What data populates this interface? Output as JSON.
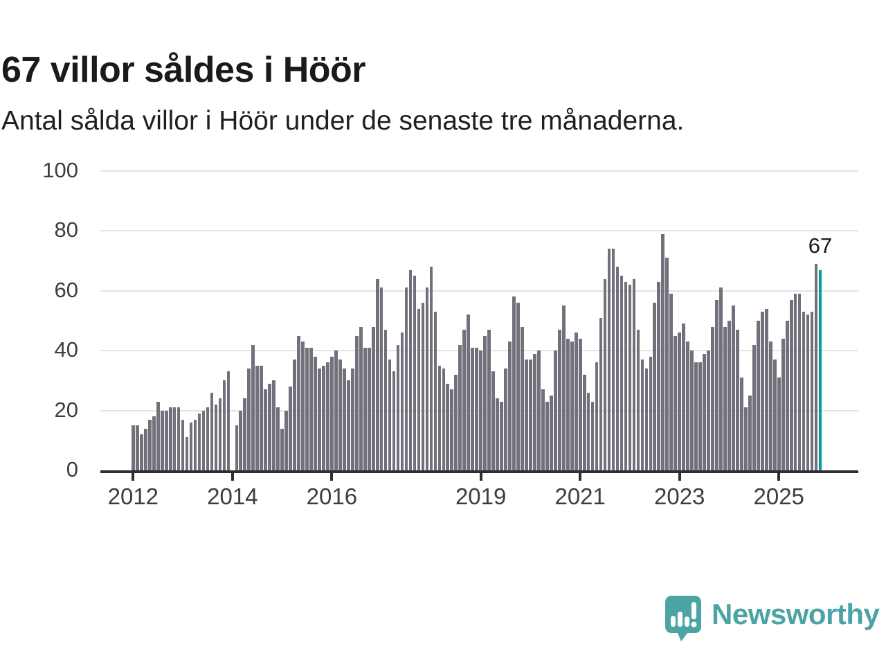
{
  "headline": "67 villor såldes i Höör",
  "subtitle": "Antal sålda villor i Höör under de senaste tre månaderna.",
  "annotation": "67",
  "logo": {
    "text": "Newsworthy"
  },
  "colors": {
    "bar": "#71717b",
    "highlight": "#00a19a",
    "logo_teal": "#4ba4a3",
    "gridline": "#e3e3e3",
    "axis": "#2e2e2e",
    "label": "#3d3d3d"
  },
  "chart_data": {
    "type": "bar",
    "title": "67 villor såldes i Höör",
    "subtitle": "Antal sålda villor i Höör under de senaste tre månaderna.",
    "xlabel": "",
    "ylabel": "",
    "ylim": [
      0,
      100
    ],
    "grid": true,
    "legend_position": "none",
    "yticks": [
      0,
      20,
      40,
      60,
      80,
      100
    ],
    "xticks": [
      {
        "label": "2012",
        "index": 0
      },
      {
        "label": "2014",
        "index": 24
      },
      {
        "label": "2016",
        "index": 48
      },
      {
        "label": "2019",
        "index": 84
      },
      {
        "label": "2021",
        "index": 108
      },
      {
        "label": "2023",
        "index": 132
      },
      {
        "label": "2025",
        "index": 156
      }
    ],
    "values": [
      15,
      15,
      12,
      14,
      17,
      18,
      23,
      20,
      20,
      21,
      21,
      21,
      17,
      11,
      16,
      17,
      19,
      20,
      21,
      26,
      22,
      24,
      30,
      33,
      0,
      15,
      20,
      24,
      34,
      42,
      35,
      35,
      27,
      29,
      30,
      21,
      14,
      20,
      28,
      37,
      45,
      43,
      41,
      41,
      38,
      34,
      35,
      36,
      38,
      40,
      37,
      34,
      30,
      34,
      45,
      48,
      41,
      41,
      48,
      64,
      61,
      47,
      37,
      33,
      42,
      46,
      61,
      67,
      65,
      54,
      56,
      61,
      68,
      53,
      35,
      34,
      29,
      27,
      32,
      42,
      47,
      52,
      41,
      41,
      40,
      45,
      47,
      33,
      24,
      23,
      34,
      43,
      58,
      56,
      48,
      37,
      37,
      39,
      40,
      27,
      23,
      25,
      40,
      47,
      55,
      44,
      43,
      46,
      44,
      32,
      26,
      23,
      36,
      51,
      64,
      74,
      74,
      68,
      65,
      63,
      62,
      64,
      47,
      37,
      34,
      38,
      56,
      63,
      79,
      71,
      59,
      45,
      46,
      49,
      43,
      40,
      36,
      36,
      39,
      40,
      48,
      57,
      61,
      48,
      50,
      55,
      47,
      31,
      21,
      25,
      42,
      50,
      53,
      54,
      43,
      37,
      31,
      44,
      50,
      57,
      59,
      59,
      53,
      52,
      53,
      69,
      67
    ],
    "highlight_index": 166,
    "highlight_value": 67
  }
}
